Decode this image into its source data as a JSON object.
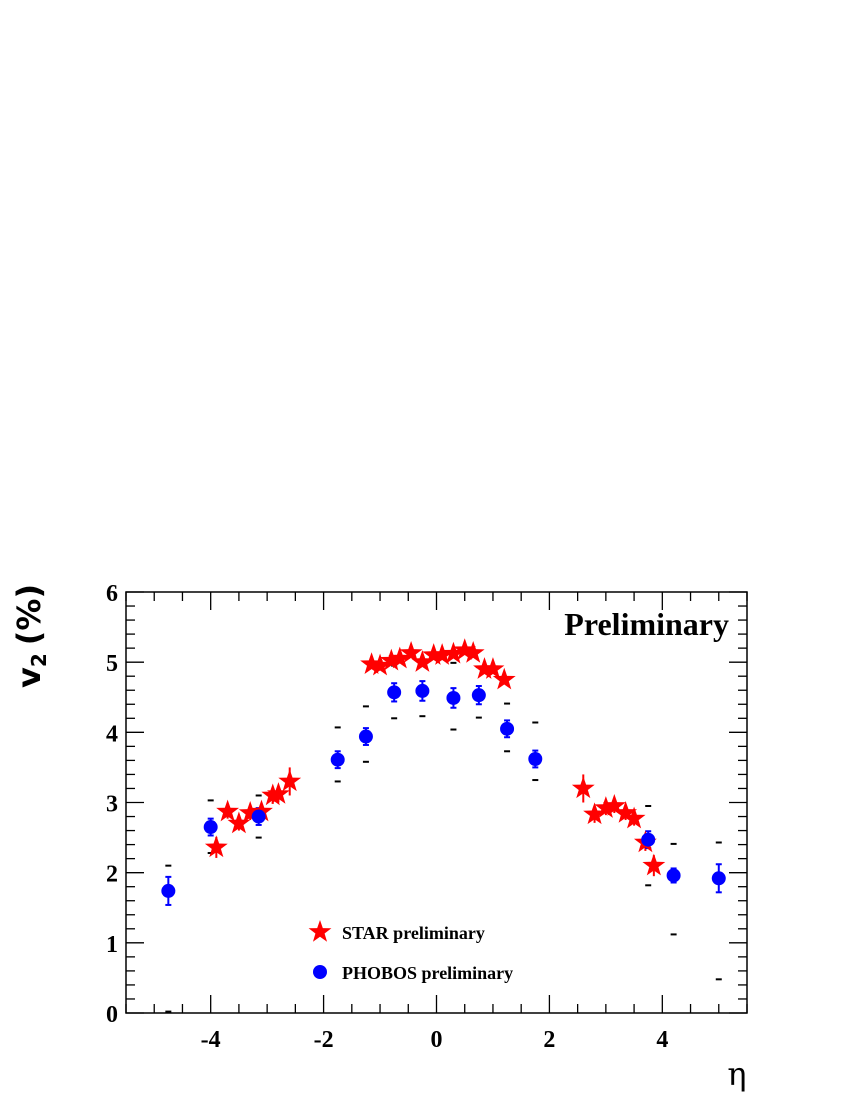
{
  "chart_data": {
    "type": "scatter",
    "title": "",
    "annotation": "Preliminary",
    "xlabel": "η",
    "ylabel": {
      "main": "v",
      "sub": "2",
      "unit": "(%)"
    },
    "xlim": [
      -5.5,
      5.5
    ],
    "ylim": [
      0,
      6
    ],
    "x_ticks": [
      -4,
      -2,
      0,
      2,
      4
    ],
    "x_tick_labels": [
      "-4",
      "-2",
      "0",
      "2",
      "4"
    ],
    "y_ticks": [
      0,
      1,
      2,
      3,
      4,
      5,
      6
    ],
    "y_tick_labels": [
      "0",
      "1",
      "2",
      "3",
      "4",
      "5",
      "6"
    ],
    "legend_placement": "bottom-center",
    "series": [
      {
        "name": "STAR preliminary",
        "marker": "star",
        "color": "#ff0000",
        "points": [
          {
            "x": -3.9,
            "y": 2.36,
            "err": 0.15
          },
          {
            "x": -3.7,
            "y": 2.87,
            "err": 0.1
          },
          {
            "x": -3.5,
            "y": 2.7,
            "err": 0.1
          },
          {
            "x": -3.3,
            "y": 2.85,
            "err": 0.1
          },
          {
            "x": -3.1,
            "y": 2.87,
            "err": 0.12
          },
          {
            "x": -2.9,
            "y": 3.1,
            "err": 0.12
          },
          {
            "x": -2.8,
            "y": 3.12,
            "err": 0.12
          },
          {
            "x": -2.6,
            "y": 3.3,
            "err": 0.2
          },
          {
            "x": -1.15,
            "y": 4.97,
            "err": 0.04
          },
          {
            "x": -1.0,
            "y": 4.95,
            "err": 0.04
          },
          {
            "x": -0.8,
            "y": 5.02,
            "err": 0.04
          },
          {
            "x": -0.65,
            "y": 5.05,
            "err": 0.04
          },
          {
            "x": -0.45,
            "y": 5.13,
            "err": 0.04
          },
          {
            "x": -0.25,
            "y": 5.0,
            "err": 0.04
          },
          {
            "x": -0.05,
            "y": 5.1,
            "err": 0.04
          },
          {
            "x": 0.1,
            "y": 5.1,
            "err": 0.04
          },
          {
            "x": 0.3,
            "y": 5.12,
            "err": 0.04
          },
          {
            "x": 0.5,
            "y": 5.17,
            "err": 0.04
          },
          {
            "x": 0.65,
            "y": 5.13,
            "err": 0.04
          },
          {
            "x": 0.85,
            "y": 4.9,
            "err": 0.04
          },
          {
            "x": 1.0,
            "y": 4.9,
            "err": 0.04
          },
          {
            "x": 1.2,
            "y": 4.75,
            "err": 0.04
          },
          {
            "x": 2.6,
            "y": 3.2,
            "err": 0.2
          },
          {
            "x": 2.8,
            "y": 2.83,
            "err": 0.12
          },
          {
            "x": 3.0,
            "y": 2.92,
            "err": 0.1
          },
          {
            "x": 3.15,
            "y": 2.95,
            "err": 0.1
          },
          {
            "x": 3.35,
            "y": 2.85,
            "err": 0.1
          },
          {
            "x": 3.5,
            "y": 2.77,
            "err": 0.1
          },
          {
            "x": 3.7,
            "y": 2.43,
            "err": 0.12
          },
          {
            "x": 3.85,
            "y": 2.1,
            "err": 0.15
          }
        ]
      },
      {
        "name": "PHOBOS preliminary",
        "marker": "circle",
        "color": "#0000ff",
        "points": [
          {
            "x": -4.75,
            "y": 1.74,
            "err": 0.2,
            "sys_hi": 2.1,
            "sys_lo": 0.02
          },
          {
            "x": -4.0,
            "y": 2.65,
            "err": 0.12,
            "sys_hi": 3.03,
            "sys_lo": 2.28
          },
          {
            "x": -3.15,
            "y": 2.8,
            "err": 0.12,
            "sys_hi": 3.1,
            "sys_lo": 2.5
          },
          {
            "x": -1.75,
            "y": 3.61,
            "err": 0.12,
            "sys_hi": 4.07,
            "sys_lo": 3.3
          },
          {
            "x": -1.25,
            "y": 3.94,
            "err": 0.12,
            "sys_hi": 4.37,
            "sys_lo": 3.58
          },
          {
            "x": -0.75,
            "y": 4.57,
            "err": 0.13,
            "sys_hi": 4.95,
            "sys_lo": 4.2
          },
          {
            "x": -0.25,
            "y": 4.59,
            "err": 0.14,
            "sys_hi": 5.0,
            "sys_lo": 4.23
          },
          {
            "x": 0.3,
            "y": 4.49,
            "err": 0.14,
            "sys_hi": 4.99,
            "sys_lo": 4.04
          },
          {
            "x": 0.75,
            "y": 4.53,
            "err": 0.13,
            "sys_hi": 4.93,
            "sys_lo": 4.21
          },
          {
            "x": 1.25,
            "y": 4.05,
            "err": 0.12,
            "sys_hi": 4.41,
            "sys_lo": 3.73
          },
          {
            "x": 1.75,
            "y": 3.62,
            "err": 0.12,
            "sys_hi": 4.14,
            "sys_lo": 3.32
          },
          {
            "x": 3.75,
            "y": 2.47,
            "err": 0.12,
            "sys_hi": 2.95,
            "sys_lo": 1.82
          },
          {
            "x": 4.2,
            "y": 1.96,
            "err": 0.1,
            "sys_hi": 2.41,
            "sys_lo": 1.12
          },
          {
            "x": 5.0,
            "y": 1.92,
            "err": 0.2,
            "sys_hi": 2.43,
            "sys_lo": 0.48
          }
        ]
      }
    ]
  }
}
